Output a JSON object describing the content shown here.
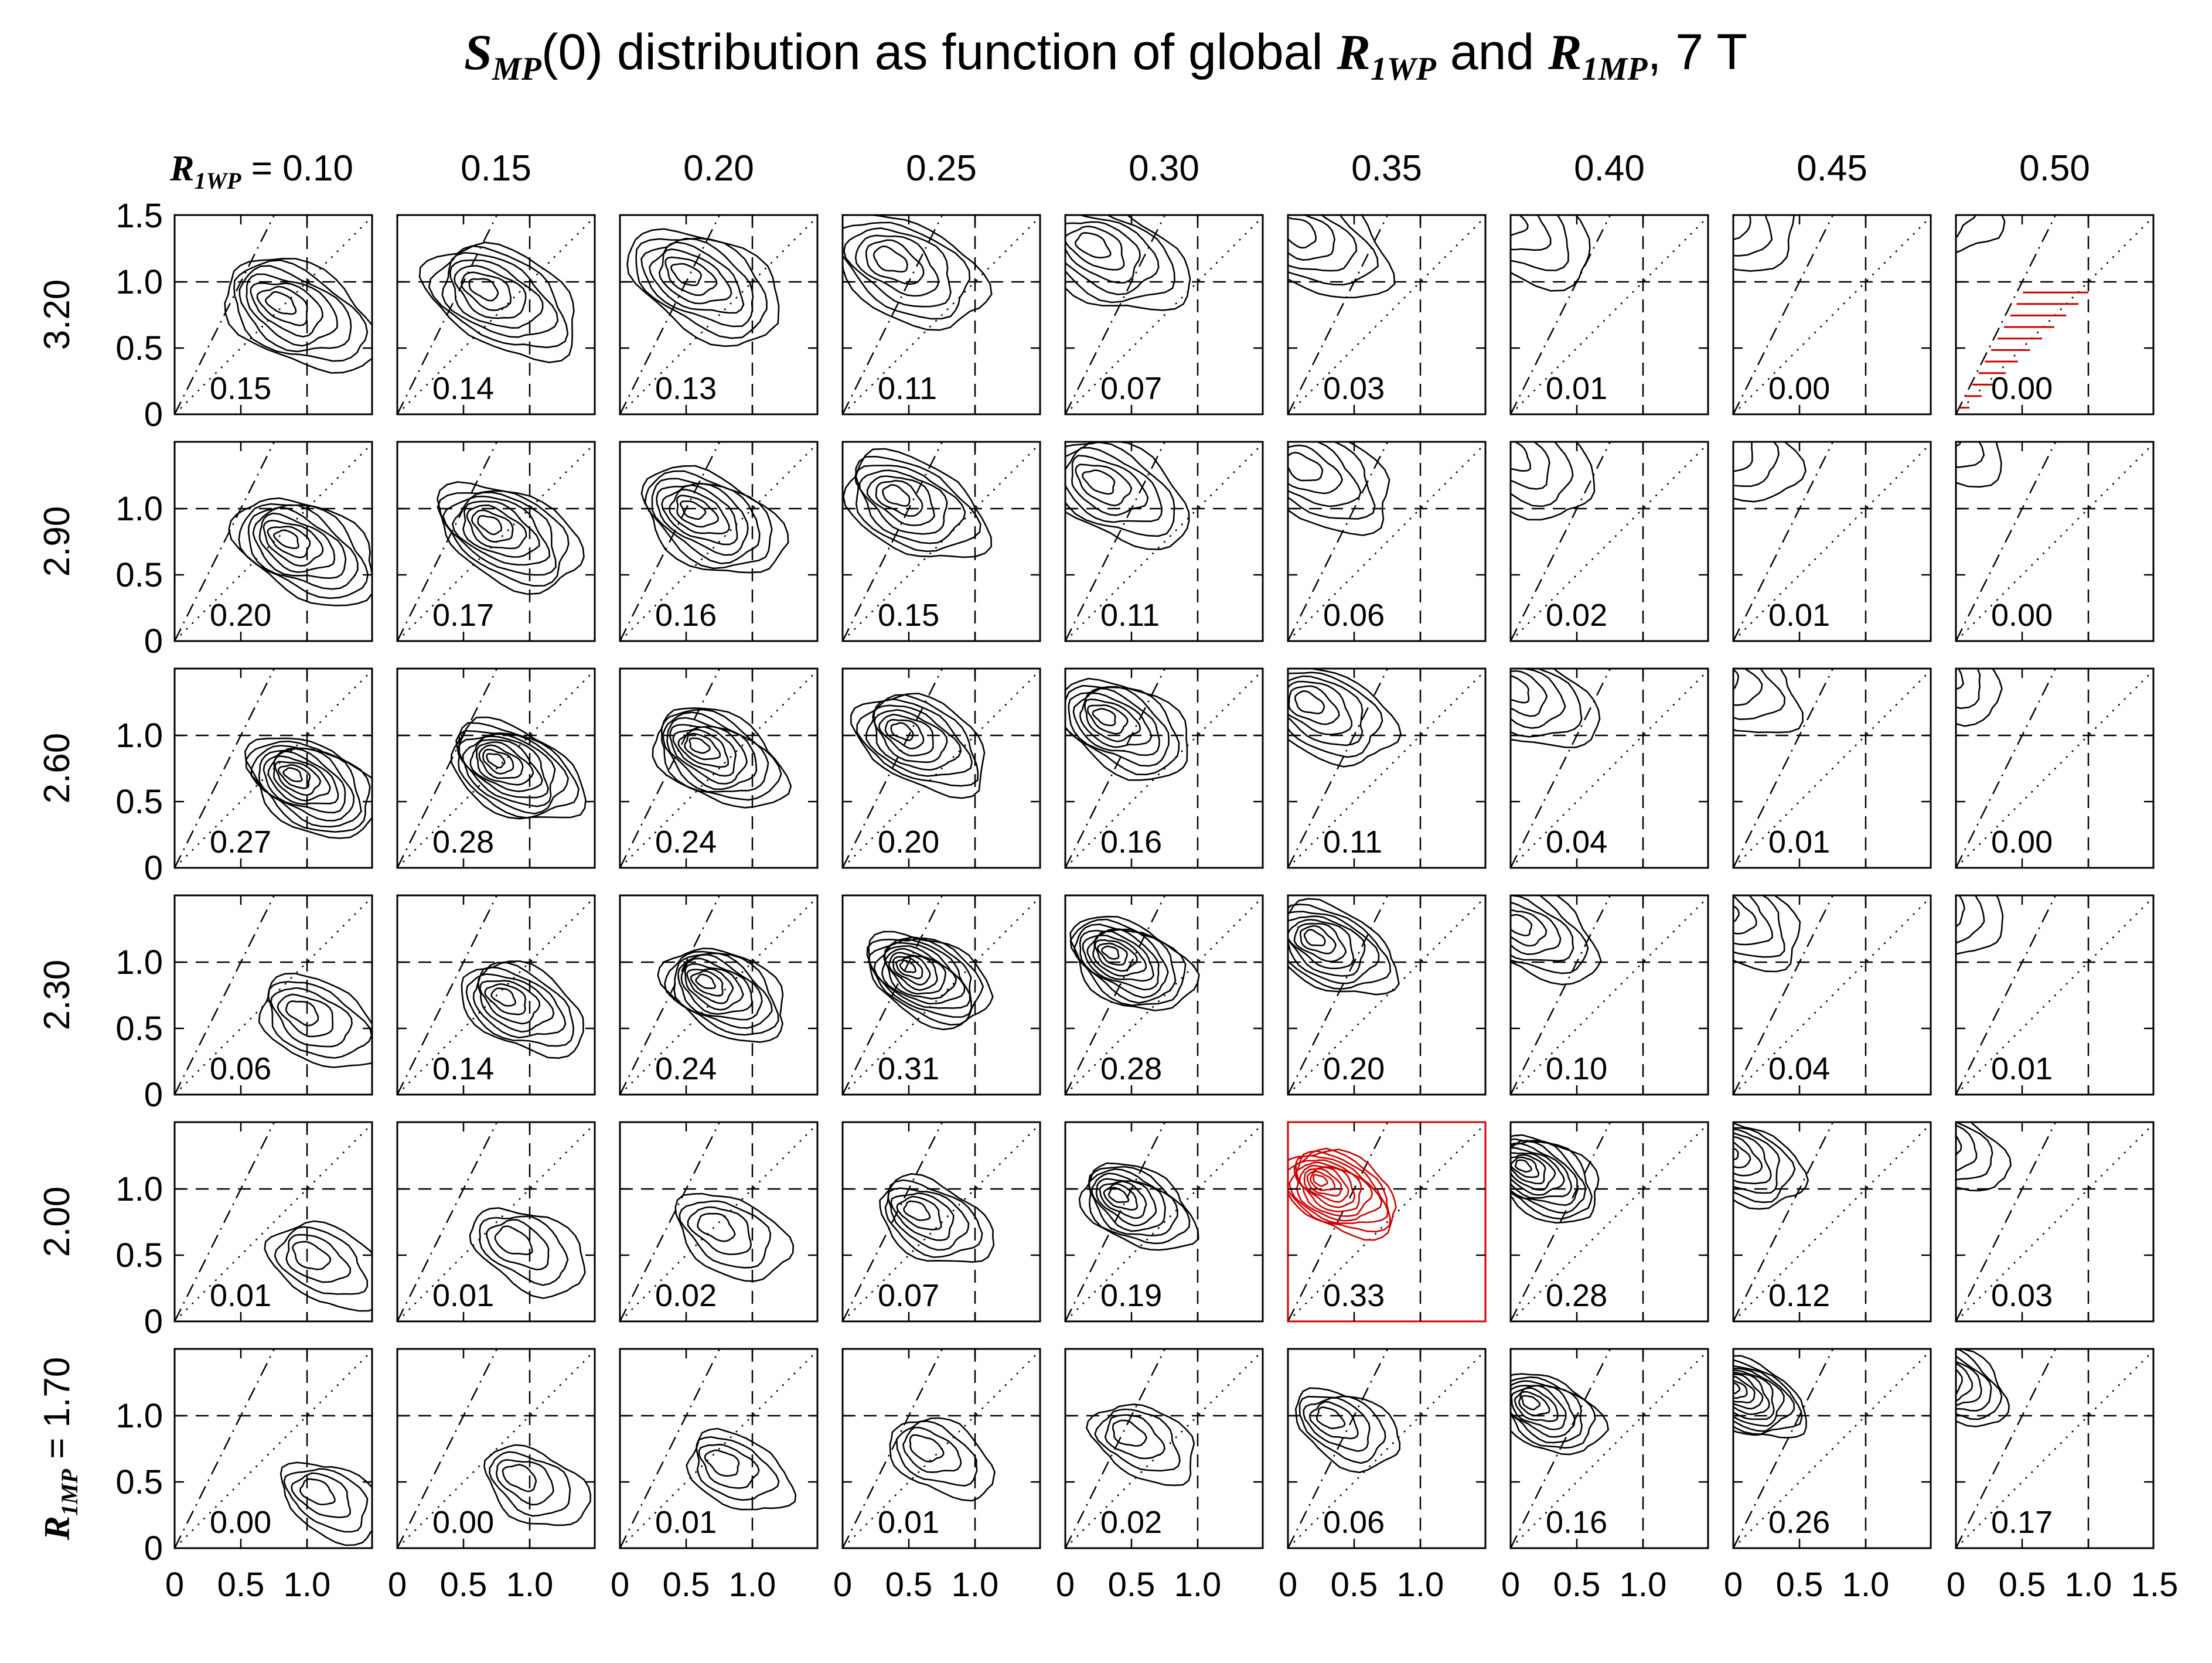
{
  "colors": {
    "ink": "#000000",
    "highlight": "#cc0000",
    "background": "#ffffff"
  },
  "title": {
    "s_symbol": "S",
    "s_sub": "MP",
    "text_a": "(0) distribution as function of global ",
    "r1_symbol": "R",
    "r1_sub": "1WP",
    "text_b": " and ",
    "r2_symbol": "R",
    "r2_sub": "1MP",
    "text_c": ", 7 T"
  },
  "column_axis": {
    "symbol": "R",
    "sub": "1WP",
    "eq": " = "
  },
  "row_axis": {
    "symbol": "R",
    "sub": "1MP",
    "eq": " = "
  },
  "chart_data": {
    "type": "contour-grid",
    "columns": [
      "0.10",
      "0.15",
      "0.20",
      "0.25",
      "0.30",
      "0.35",
      "0.40",
      "0.45",
      "0.50"
    ],
    "rows": [
      "3.20",
      "2.90",
      "2.60",
      "2.30",
      "2.00",
      "1.70"
    ],
    "highlight": {
      "column": "0.35",
      "row": "2.00"
    },
    "panel_values": [
      [
        "0.15",
        "0.14",
        "0.13",
        "0.11",
        "0.07",
        "0.03",
        "0.01",
        "0.00",
        "0.00"
      ],
      [
        "0.20",
        "0.17",
        "0.16",
        "0.15",
        "0.11",
        "0.06",
        "0.02",
        "0.01",
        "0.00"
      ],
      [
        "0.27",
        "0.28",
        "0.24",
        "0.20",
        "0.16",
        "0.11",
        "0.04",
        "0.01",
        "0.00"
      ],
      [
        "0.06",
        "0.14",
        "0.24",
        "0.31",
        "0.28",
        "0.20",
        "0.10",
        "0.04",
        "0.01"
      ],
      [
        "0.01",
        "0.01",
        "0.02",
        "0.07",
        "0.19",
        "0.33",
        "0.28",
        "0.12",
        "0.03"
      ],
      [
        "0.00",
        "0.00",
        "0.01",
        "0.01",
        "0.02",
        "0.06",
        "0.16",
        "0.26",
        "0.17"
      ]
    ],
    "x_ticks": [
      "0",
      "0.5",
      "1.0"
    ],
    "x_extra_tick": "1.5",
    "y_ticks_top": [
      "0",
      "0.5",
      "1.0",
      "1.5"
    ],
    "y_ticks": [
      "0",
      "0.5",
      "1.0"
    ],
    "xlim": [
      0,
      1.5
    ],
    "ylim": [
      0,
      1.5
    ],
    "reference_lines": {
      "horizontal_dashed_y": 1.0,
      "vertical_dashed_x": 1.0,
      "dotted_slope": 1.0,
      "dash_dot_slope": 2.0
    }
  }
}
